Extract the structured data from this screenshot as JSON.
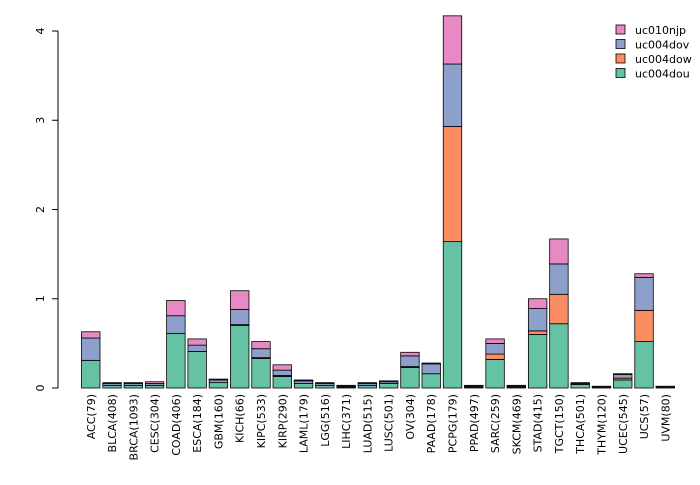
{
  "chart_data": {
    "type": "bar",
    "stacked": true,
    "title": "",
    "xlabel": "",
    "ylabel": "",
    "ylim": [
      0,
      4
    ],
    "yticks": [
      "0",
      "1",
      "2",
      "3",
      "4"
    ],
    "legend_position": "top-right",
    "categories": [
      "ACC(79)",
      "BLCA(408)",
      "BRCA(1093)",
      "CESC(304)",
      "COAD(406)",
      "ESCA(184)",
      "GBM(160)",
      "KICH(66)",
      "KIPC(533)",
      "KIRP(290)",
      "LAML(179)",
      "LGG(516)",
      "LIHC(371)",
      "LUAD(515)",
      "LUSC(501)",
      "OV(304)",
      "PAAD(178)",
      "PCPG(179)",
      "PPAD(497)",
      "SARC(259)",
      "SKCM(469)",
      "STAD(415)",
      "TGCT(150)",
      "THCA(501)",
      "THYM(120)",
      "UCEC(545)",
      "UCS(57)",
      "UVM(80)"
    ],
    "series": [
      {
        "name": "uc004dou",
        "color": "#66c2a5",
        "values": [
          0.31,
          0.03,
          0.03,
          0.03,
          0.61,
          0.41,
          0.06,
          0.7,
          0.33,
          0.13,
          0.05,
          0.03,
          0.01,
          0.03,
          0.05,
          0.23,
          0.16,
          1.64,
          0.01,
          0.32,
          0.01,
          0.6,
          0.72,
          0.04,
          0.01,
          0.09,
          0.52,
          0.01
        ]
      },
      {
        "name": "uc004dow",
        "color": "#fc8d62",
        "values": [
          0.0,
          0.0,
          0.0,
          0.0,
          0.0,
          0.0,
          0.0,
          0.01,
          0.01,
          0.01,
          0.0,
          0.0,
          0.0,
          0.0,
          0.0,
          0.01,
          0.0,
          1.29,
          0.0,
          0.06,
          0.0,
          0.04,
          0.33,
          0.0,
          0.0,
          0.02,
          0.35,
          0.0
        ]
      },
      {
        "name": "uc004dov",
        "color": "#8da0cb",
        "values": [
          0.25,
          0.02,
          0.02,
          0.02,
          0.2,
          0.07,
          0.03,
          0.17,
          0.1,
          0.06,
          0.03,
          0.02,
          0.01,
          0.02,
          0.02,
          0.12,
          0.11,
          0.7,
          0.01,
          0.12,
          0.01,
          0.25,
          0.34,
          0.01,
          0.01,
          0.04,
          0.37,
          0.01
        ]
      },
      {
        "name": "uc010njp",
        "color": "#e78ac3",
        "values": [
          0.07,
          0.01,
          0.01,
          0.02,
          0.17,
          0.07,
          0.01,
          0.21,
          0.08,
          0.06,
          0.01,
          0.01,
          0.01,
          0.01,
          0.01,
          0.04,
          0.01,
          0.54,
          0.01,
          0.05,
          0.01,
          0.11,
          0.28,
          0.01,
          0.0,
          0.01,
          0.04,
          0.0
        ]
      }
    ],
    "legend_order": [
      "uc010njp",
      "uc004dov",
      "uc004dow",
      "uc004dou"
    ]
  }
}
